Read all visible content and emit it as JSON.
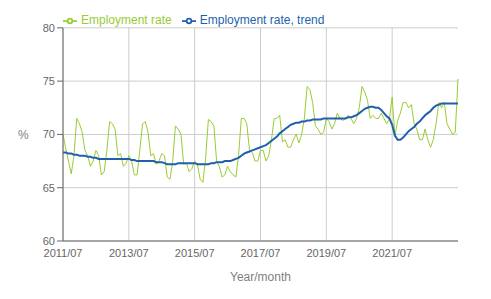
{
  "chart_data": {
    "type": "line",
    "xlabel": "Year/month",
    "ylabel": "%",
    "categories": [
      "2011/07",
      null,
      null,
      null,
      null,
      null,
      null,
      null,
      null,
      null,
      null,
      null,
      null,
      null,
      null,
      null,
      null,
      null,
      null,
      null,
      null,
      null,
      null,
      null,
      "2013/07",
      null,
      null,
      null,
      null,
      null,
      null,
      null,
      null,
      null,
      null,
      null,
      null,
      null,
      null,
      null,
      null,
      null,
      null,
      null,
      null,
      null,
      null,
      null,
      "2015/07",
      null,
      null,
      null,
      null,
      null,
      null,
      null,
      null,
      null,
      null,
      null,
      null,
      null,
      null,
      null,
      null,
      null,
      null,
      null,
      null,
      null,
      null,
      null,
      "2017/07",
      null,
      null,
      null,
      null,
      null,
      null,
      null,
      null,
      null,
      null,
      null,
      null,
      null,
      null,
      null,
      null,
      null,
      null,
      null,
      null,
      null,
      null,
      null,
      "2019/07",
      null,
      null,
      null,
      null,
      null,
      null,
      null,
      null,
      null,
      null,
      null,
      null,
      null,
      null,
      null,
      null,
      null,
      null,
      null,
      null,
      null,
      null,
      null,
      "2021/07",
      null,
      null,
      null,
      null,
      null,
      null,
      null,
      null,
      null,
      null,
      null,
      null,
      null,
      null,
      null,
      null,
      null,
      null,
      null,
      null,
      null,
      null,
      null,
      null
    ],
    "series": [
      {
        "name": "Employment rate",
        "color": "#99cc33",
        "values": [
          70.0,
          68.7,
          67.5,
          66.3,
          68.0,
          71.5,
          71.0,
          70.2,
          68.5,
          68.0,
          67.0,
          67.5,
          68.5,
          68.0,
          66.2,
          66.5,
          68.5,
          71.2,
          71.0,
          70.5,
          68.0,
          68.2,
          67.0,
          67.3,
          68.0,
          67.5,
          66.2,
          66.2,
          68.5,
          71.0,
          71.2,
          70.2,
          68.0,
          68.2,
          67.2,
          67.5,
          68.2,
          68.0,
          66.0,
          65.8,
          67.5,
          70.8,
          70.5,
          70.0,
          67.2,
          67.3,
          66.5,
          66.8,
          67.5,
          67.2,
          65.8,
          65.5,
          67.8,
          71.4,
          71.2,
          70.8,
          67.5,
          67.0,
          66.0,
          66.2,
          67.0,
          66.5,
          66.2,
          66.0,
          68.0,
          71.5,
          71.5,
          71.0,
          68.5,
          68.3,
          67.5,
          67.5,
          68.5,
          68.5,
          67.5,
          68.0,
          69.5,
          71.5,
          71.5,
          71.8,
          69.3,
          69.5,
          68.8,
          68.8,
          69.5,
          70.0,
          69.2,
          70.0,
          71.5,
          74.5,
          74.2,
          73.0,
          70.8,
          70.5,
          70.0,
          70.2,
          71.5,
          71.2,
          70.5,
          71.0,
          72.0,
          71.5,
          71.3,
          71.5,
          71.8,
          71.5,
          71.0,
          71.5,
          72.5,
          74.5,
          74.0,
          73.2,
          71.5,
          71.8,
          71.5,
          71.5,
          72.0,
          71.5,
          71.0,
          71.5,
          73.5,
          69.8,
          71.3,
          72.0,
          73.0,
          73.0,
          72.5,
          72.8,
          71.0,
          70.5,
          69.5,
          69.5,
          70.5,
          69.5,
          68.8,
          69.5,
          71.0,
          73.0,
          72.5,
          73.0,
          71.0,
          70.5,
          70.0,
          70.2,
          75.2
        ]
      },
      {
        "name": "Employment rate, trend",
        "color": "#1f5fad",
        "values": [
          68.3,
          68.3,
          68.2,
          68.2,
          68.1,
          68.1,
          68.0,
          68.0,
          68.0,
          67.9,
          67.9,
          67.8,
          67.8,
          67.7,
          67.7,
          67.7,
          67.7,
          67.7,
          67.7,
          67.7,
          67.7,
          67.7,
          67.7,
          67.7,
          67.7,
          67.6,
          67.6,
          67.5,
          67.5,
          67.5,
          67.5,
          67.5,
          67.5,
          67.5,
          67.4,
          67.4,
          67.4,
          67.3,
          67.2,
          67.2,
          67.2,
          67.2,
          67.3,
          67.3,
          67.3,
          67.3,
          67.3,
          67.3,
          67.3,
          67.2,
          67.2,
          67.2,
          67.2,
          67.2,
          67.3,
          67.3,
          67.4,
          67.4,
          67.4,
          67.5,
          67.5,
          67.5,
          67.6,
          67.7,
          67.8,
          68.0,
          68.2,
          68.3,
          68.4,
          68.5,
          68.6,
          68.7,
          68.8,
          68.9,
          69.0,
          69.2,
          69.4,
          69.6,
          69.8,
          70.1,
          70.3,
          70.5,
          70.7,
          70.9,
          71.0,
          71.1,
          71.1,
          71.2,
          71.2,
          71.3,
          71.3,
          71.4,
          71.4,
          71.4,
          71.4,
          71.5,
          71.5,
          71.5,
          71.5,
          71.5,
          71.5,
          71.5,
          71.5,
          71.5,
          71.6,
          71.6,
          71.7,
          71.8,
          72.0,
          72.2,
          72.4,
          72.5,
          72.6,
          72.6,
          72.5,
          72.5,
          72.3,
          72.0,
          71.7,
          71.5,
          70.9,
          69.9,
          69.5,
          69.5,
          69.7,
          70.0,
          70.3,
          70.5,
          70.7,
          71.0,
          71.2,
          71.5,
          71.8,
          72.0,
          72.2,
          72.5,
          72.7,
          72.8,
          72.9,
          72.9,
          72.9,
          72.9,
          72.9,
          72.9,
          72.9
        ]
      }
    ],
    "ylim": [
      60,
      80
    ],
    "yticks": [
      60,
      65,
      70,
      75,
      80
    ],
    "grid": true,
    "legend": "upper left"
  }
}
